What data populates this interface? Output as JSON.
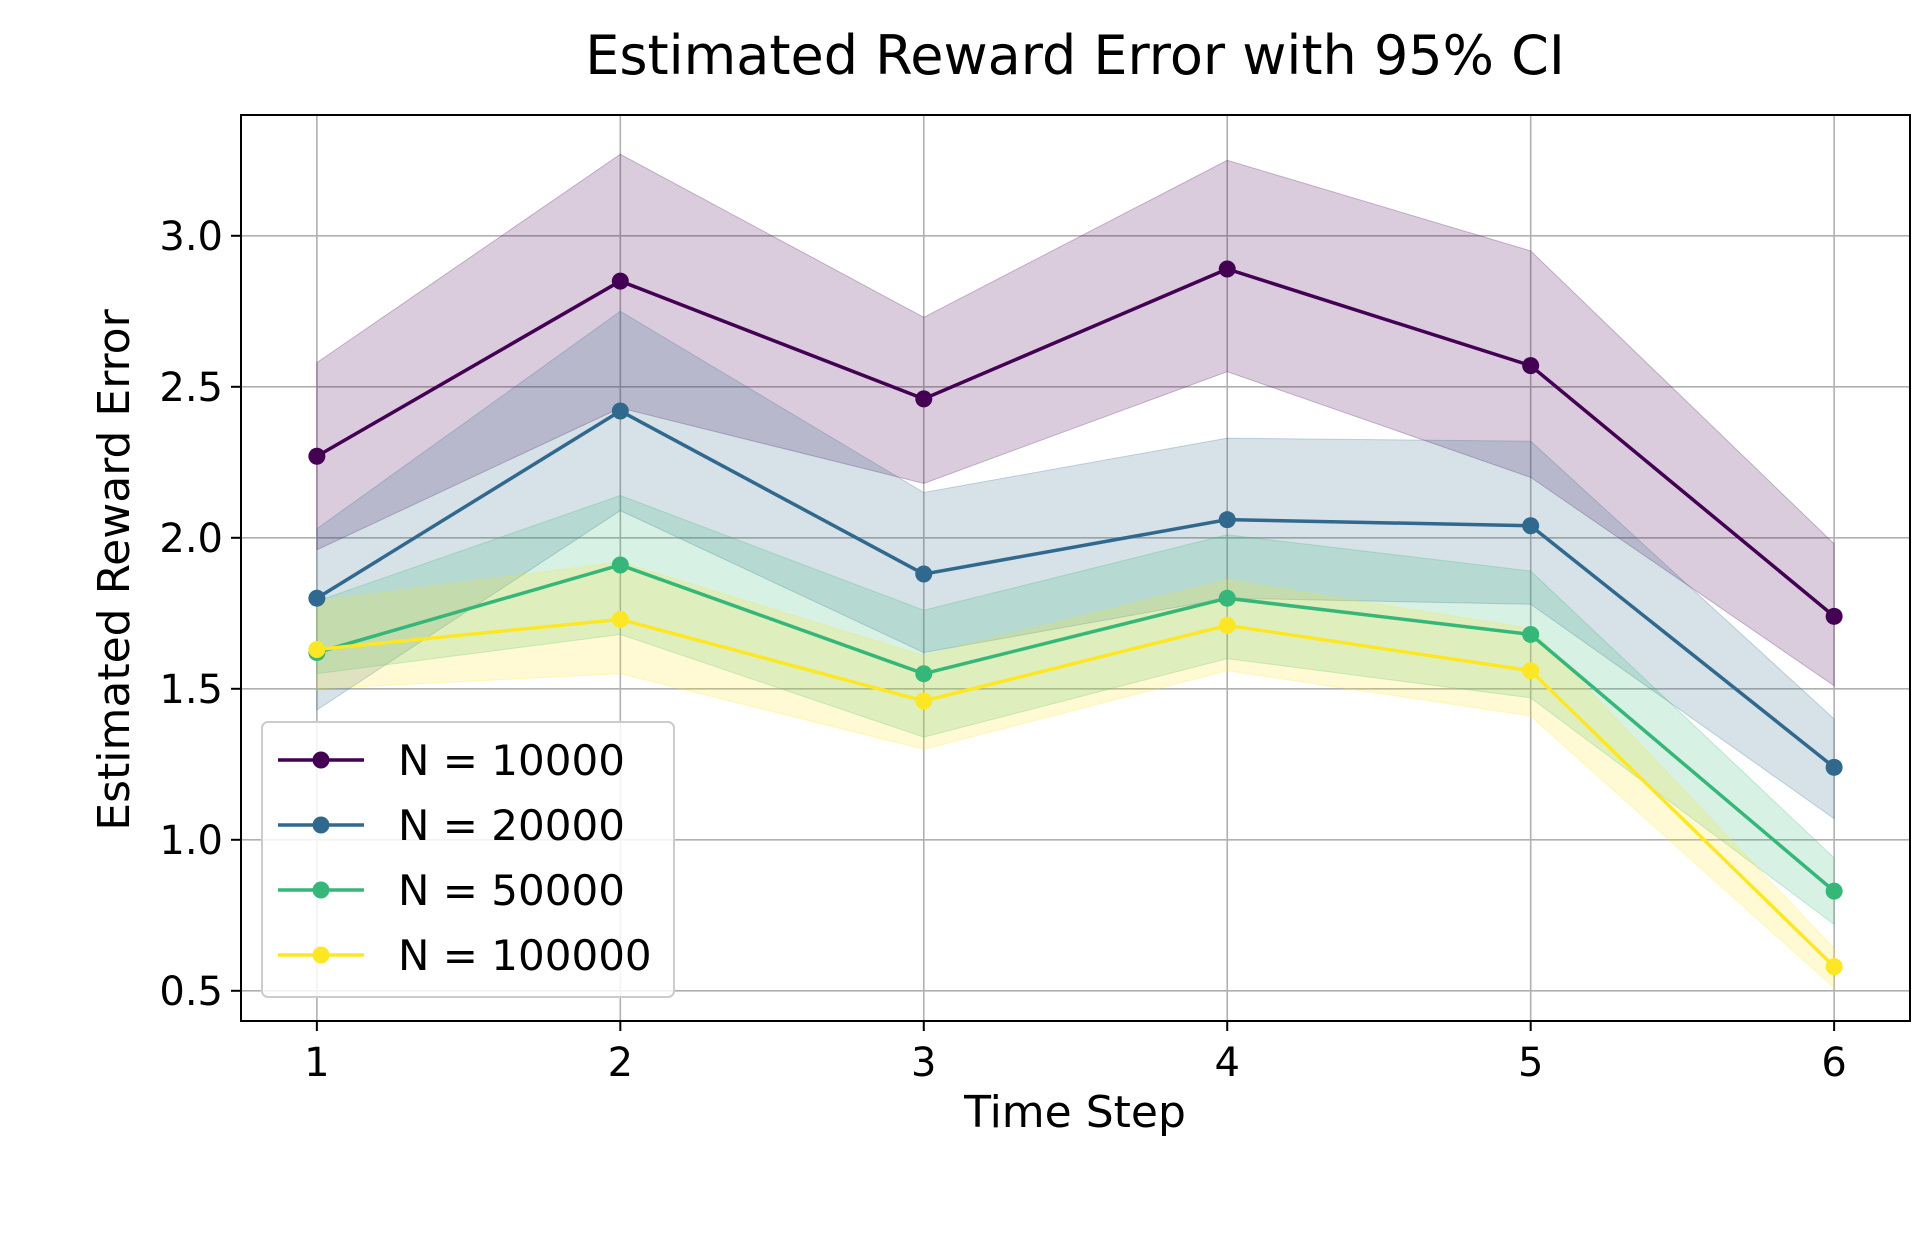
{
  "chart_data": {
    "type": "line",
    "title": "Estimated Reward Error with 95% CI",
    "xlabel": "Time Step",
    "ylabel": "Estimated Reward Error",
    "x": [
      1,
      2,
      3,
      4,
      5,
      6
    ],
    "xlim": [
      0.75,
      6.25
    ],
    "ylim": [
      0.4,
      3.4
    ],
    "xticks": [
      "1",
      "2",
      "3",
      "4",
      "5",
      "6"
    ],
    "yticks": [
      "0.5",
      "1.0",
      "1.5",
      "2.0",
      "2.5",
      "3.0"
    ],
    "grid": true,
    "legend_position": "lower-left",
    "series": [
      {
        "name": "N = 10000",
        "color": "#440154",
        "values": [
          2.27,
          2.85,
          2.46,
          2.89,
          2.57,
          1.74
        ],
        "ci_lower": [
          1.96,
          2.43,
          2.18,
          2.55,
          2.2,
          1.51
        ],
        "ci_upper": [
          2.58,
          3.27,
          2.73,
          3.25,
          2.95,
          1.98
        ]
      },
      {
        "name": "N = 20000",
        "color": "#31688e",
        "values": [
          1.8,
          2.42,
          1.88,
          2.06,
          2.04,
          1.24
        ],
        "ci_lower": [
          1.43,
          2.09,
          1.62,
          1.8,
          1.78,
          1.07
        ],
        "ci_upper": [
          2.03,
          2.75,
          2.15,
          2.33,
          2.32,
          1.4
        ]
      },
      {
        "name": "N = 50000",
        "color": "#35b779",
        "values": [
          1.62,
          1.91,
          1.55,
          1.8,
          1.68,
          0.83
        ],
        "ci_lower": [
          1.55,
          1.68,
          1.34,
          1.6,
          1.47,
          0.72
        ],
        "ci_upper": [
          1.79,
          2.14,
          1.76,
          2.01,
          1.89,
          0.94
        ]
      },
      {
        "name": "N = 100000",
        "color": "#fde725",
        "values": [
          1.63,
          1.73,
          1.46,
          1.71,
          1.56,
          0.58
        ],
        "ci_lower": [
          1.5,
          1.55,
          1.3,
          1.56,
          1.41,
          0.51
        ],
        "ci_upper": [
          1.79,
          1.92,
          1.61,
          1.86,
          1.7,
          0.64
        ]
      }
    ]
  }
}
